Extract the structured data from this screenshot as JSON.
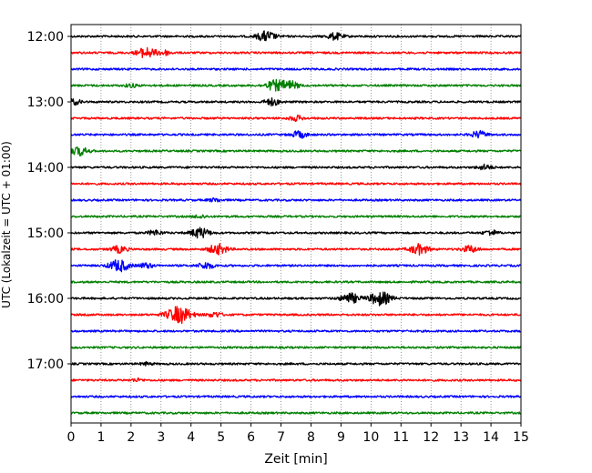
{
  "chart_data": {
    "type": "line",
    "title": "",
    "xlabel": "Zeit  [min]",
    "ylabel": "UTC (Lokalzeit = UTC + 01:00)",
    "xlim": [
      0,
      15
    ],
    "x_ticks": [
      "0",
      "1",
      "2",
      "3",
      "4",
      "5",
      "6",
      "7",
      "8",
      "9",
      "10",
      "11",
      "12",
      "13",
      "14",
      "15"
    ],
    "y_tick_labels": [
      "12:00",
      "13:00",
      "14:00",
      "15:00",
      "16:00",
      "17:00"
    ],
    "grid": "vertical dotted at each minute",
    "legend": "none",
    "colors": [
      "#000000",
      "#ff0000",
      "#0000ff",
      "#008000"
    ],
    "series": [
      {
        "start": "12:00",
        "color": "#000000",
        "events": [
          {
            "t": 6.5,
            "amp": 3
          },
          {
            "t": 8.8,
            "amp": 2
          }
        ]
      },
      {
        "start": "12:15",
        "color": "#ff0000",
        "events": [
          {
            "t": 2.5,
            "amp": 3
          },
          {
            "t": 3.1,
            "amp": 1.5
          }
        ]
      },
      {
        "start": "12:30",
        "color": "#0000ff",
        "events": []
      },
      {
        "start": "12:45",
        "color": "#008000",
        "events": [
          {
            "t": 6.8,
            "amp": 3
          },
          {
            "t": 7.3,
            "amp": 2.5
          },
          {
            "t": 2.0,
            "amp": 1
          }
        ]
      },
      {
        "start": "13:00",
        "color": "#000000",
        "events": [
          {
            "t": 0.1,
            "amp": 1.5
          },
          {
            "t": 6.7,
            "amp": 2
          }
        ]
      },
      {
        "start": "13:15",
        "color": "#ff0000",
        "events": [
          {
            "t": 7.5,
            "amp": 1.5
          }
        ]
      },
      {
        "start": "13:30",
        "color": "#0000ff",
        "events": [
          {
            "t": 7.6,
            "amp": 2
          },
          {
            "t": 13.6,
            "amp": 2
          }
        ]
      },
      {
        "start": "13:45",
        "color": "#008000",
        "events": [
          {
            "t": 0.3,
            "amp": 2.5
          }
        ]
      },
      {
        "start": "14:00",
        "color": "#000000",
        "events": [
          {
            "t": 13.8,
            "amp": 1.5
          }
        ]
      },
      {
        "start": "14:15",
        "color": "#ff0000",
        "events": []
      },
      {
        "start": "14:30",
        "color": "#0000ff",
        "events": [
          {
            "t": 4.8,
            "amp": 1
          }
        ]
      },
      {
        "start": "14:45",
        "color": "#008000",
        "events": [
          {
            "t": 4.3,
            "amp": 1
          }
        ]
      },
      {
        "start": "15:00",
        "color": "#000000",
        "events": [
          {
            "t": 4.3,
            "amp": 3
          },
          {
            "t": 2.8,
            "amp": 1.5
          },
          {
            "t": 14.0,
            "amp": 1.5
          }
        ]
      },
      {
        "start": "15:15",
        "color": "#ff0000",
        "events": [
          {
            "t": 1.6,
            "amp": 2
          },
          {
            "t": 4.9,
            "amp": 3
          },
          {
            "t": 11.6,
            "amp": 3
          },
          {
            "t": 13.3,
            "amp": 2
          }
        ]
      },
      {
        "start": "15:30",
        "color": "#0000ff",
        "events": [
          {
            "t": 1.6,
            "amp": 3.5
          },
          {
            "t": 4.5,
            "amp": 2
          },
          {
            "t": 2.5,
            "amp": 1.5
          }
        ]
      },
      {
        "start": "15:45",
        "color": "#008000",
        "events": []
      },
      {
        "start": "16:00",
        "color": "#000000",
        "events": [
          {
            "t": 9.3,
            "amp": 3
          },
          {
            "t": 10.3,
            "amp": 4
          }
        ]
      },
      {
        "start": "16:15",
        "color": "#ff0000",
        "events": [
          {
            "t": 3.6,
            "amp": 5
          },
          {
            "t": 4.8,
            "amp": 1.5
          }
        ]
      },
      {
        "start": "16:30",
        "color": "#0000ff",
        "events": []
      },
      {
        "start": "16:45",
        "color": "#008000",
        "events": []
      },
      {
        "start": "17:00",
        "color": "#000000",
        "events": [
          {
            "t": 2.5,
            "amp": 0.8
          }
        ]
      },
      {
        "start": "17:15",
        "color": "#ff0000",
        "events": [
          {
            "t": 2.2,
            "amp": 0.8
          }
        ]
      },
      {
        "start": "17:30",
        "color": "#0000ff",
        "events": []
      },
      {
        "start": "17:45",
        "color": "#008000",
        "events": []
      }
    ]
  }
}
